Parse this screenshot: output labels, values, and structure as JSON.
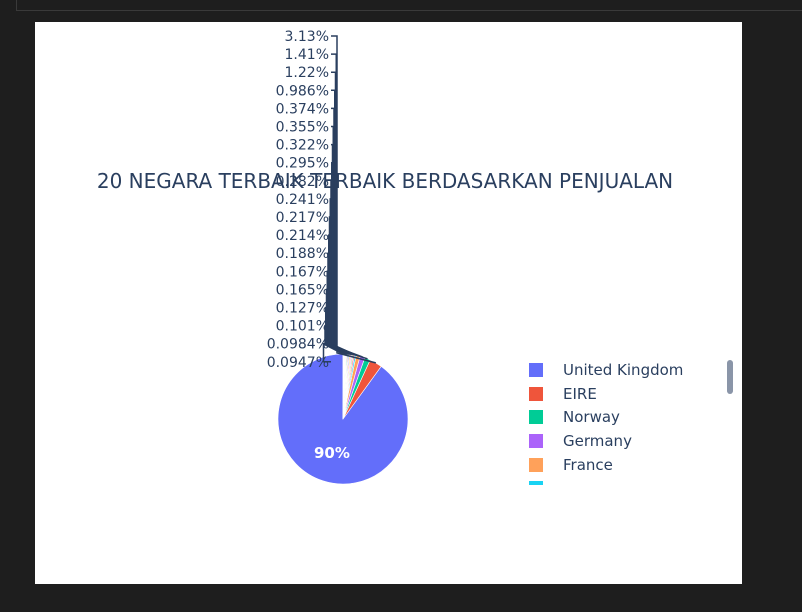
{
  "colors": {
    "background": "#1e1e1e",
    "plot_bg": "#ffffff",
    "text": "#2a3f5f",
    "leader": "#2a3f5f"
  },
  "chart_data": {
    "type": "pie",
    "title": "20 NEGARA TERBAIK TERBAIK BERDASARKAN PENJUALAN",
    "values": [
      90,
      3.13,
      1.41,
      1.22,
      0.986,
      0.374,
      0.355,
      0.322,
      0.295,
      0.282,
      0.241,
      0.217,
      0.214,
      0.188,
      0.167,
      0.165,
      0.127,
      0.101,
      0.0984,
      0.0947
    ],
    "labels_text": [
      "90%",
      "3.13%",
      "1.41%",
      "1.22%",
      "0.986%",
      "0.374%",
      "0.355%",
      "0.322%",
      "0.295%",
      "0.282%",
      "0.241%",
      "0.217%",
      "0.214%",
      "0.188%",
      "0.167%",
      "0.165%",
      "0.127%",
      "0.101%",
      "0.0984%",
      "0.0947%"
    ],
    "colors": [
      "#636efa",
      "#EF553B",
      "#00cc96",
      "#ab63fa",
      "#FFA15A",
      "#19d3f3",
      "#FF6692",
      "#B6E880",
      "#FF97FF",
      "#FECB52",
      "#636efa",
      "#EF553B",
      "#00cc96",
      "#ab63fa",
      "#FFA15A",
      "#19d3f3",
      "#FF6692",
      "#B6E880",
      "#FF97FF",
      "#FECB52"
    ],
    "legend": [
      {
        "name": "United Kingdom",
        "color": "#636efa"
      },
      {
        "name": "EIRE",
        "color": "#EF553B"
      },
      {
        "name": "Norway",
        "color": "#00cc96"
      },
      {
        "name": "Germany",
        "color": "#ab63fa"
      },
      {
        "name": "France",
        "color": "#FFA15A"
      }
    ],
    "legend_placement": "right"
  }
}
